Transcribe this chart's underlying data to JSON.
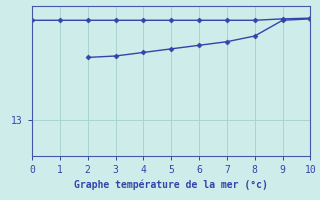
{
  "xlabel": "Graphe température de la mer (°c)",
  "ylabel": "",
  "bg_color": "#ceecea",
  "grid_color": "#a8d4d0",
  "line_color": "#3344aa",
  "xlim": [
    0,
    10
  ],
  "ylim": [
    12.5,
    14.6
  ],
  "yticks": [
    13
  ],
  "xticks": [
    0,
    1,
    2,
    3,
    4,
    5,
    6,
    7,
    8,
    9,
    10
  ],
  "line1_x": [
    0,
    1,
    2,
    3,
    4,
    5,
    6,
    7,
    8,
    9,
    10
  ],
  "line1_y": [
    14.4,
    14.4,
    14.4,
    14.4,
    14.4,
    14.4,
    14.4,
    14.4,
    14.4,
    14.42,
    14.43
  ],
  "line2_x": [
    2,
    3,
    4,
    5,
    6,
    7,
    8,
    9,
    10
  ],
  "line2_y": [
    13.88,
    13.9,
    13.95,
    14.0,
    14.05,
    14.1,
    14.18,
    14.4,
    14.42
  ],
  "marker": "D",
  "marker_size": 2.5,
  "line_width": 1.0,
  "xlabel_fontsize": 7,
  "tick_fontsize": 7,
  "ytick_fontsize": 7,
  "spine_color": "#4455aa"
}
